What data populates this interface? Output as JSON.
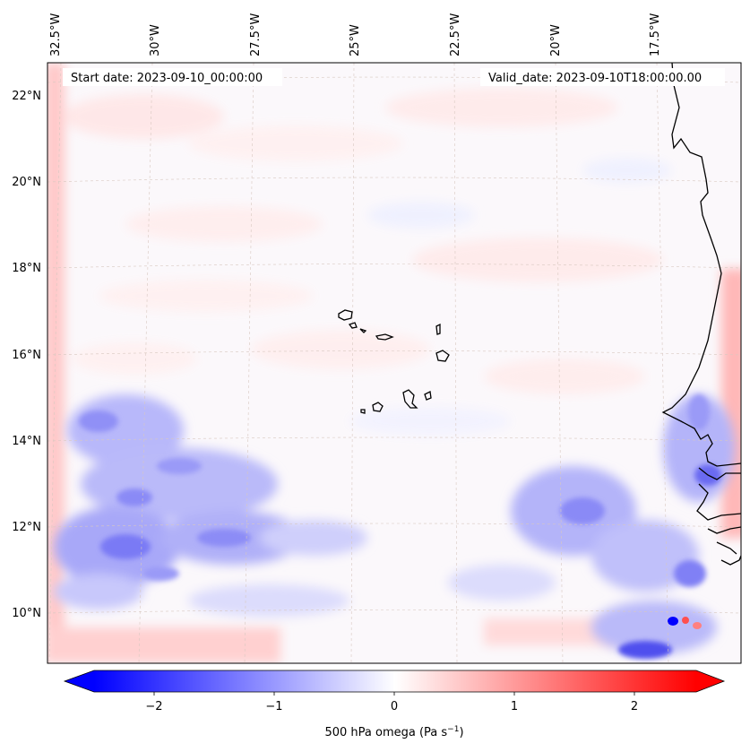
{
  "header": {
    "start_date": "Start date: 2023-09-10_00:00:00",
    "valid_date": "Valid_date: 2023-09-10T18:00:00.00"
  },
  "axes": {
    "lon_labels": [
      "32.5°W",
      "30°W",
      "27.5°W",
      "25°W",
      "22.5°W",
      "20°W",
      "17.5°W"
    ],
    "lat_labels": [
      "22°N",
      "20°N",
      "18°N",
      "16°N",
      "14°N",
      "12°N",
      "10°N"
    ]
  },
  "colorbar": {
    "ticks": [
      "−2",
      "−1",
      "0",
      "1",
      "2"
    ],
    "label": "500 hPa omega (Pa s",
    "label_sup": "−1",
    "label_tail": ")",
    "colors": {
      "neg": "#0000ff",
      "mid": "#ffffff",
      "pos": "#ff0000"
    }
  },
  "map": {
    "field_colors": {
      "blue": "#6a6af2",
      "light_blue": "#c8c8fb",
      "red": "#ff8080",
      "light_red": "#ffd8d8"
    }
  }
}
